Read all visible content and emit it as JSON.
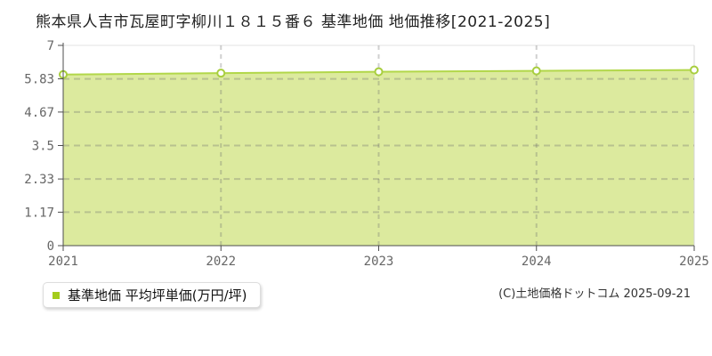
{
  "title": "熊本県人吉市瓦屋町字柳川１８１５番６ 基準地価 地価推移[2021-2025]",
  "legend": {
    "label": "基準地価 平均坪単価(万円/坪)"
  },
  "footer": {
    "copyright": "(C)土地価格ドットコム 2025-09-21"
  },
  "chart_data": {
    "type": "area",
    "categories": [
      "2021",
      "2022",
      "2023",
      "2024",
      "2025"
    ],
    "series": [
      {
        "name": "基準地価 平均坪単価(万円/坪)",
        "values": [
          5.98,
          6.03,
          6.08,
          6.11,
          6.14
        ]
      }
    ],
    "title": "熊本県人吉市瓦屋町字柳川１８１５番６ 基準地価 地価推移[2021-2025]",
    "xlabel": "",
    "ylabel": "",
    "ylim": [
      0,
      7
    ],
    "yticks": [
      0,
      1.17,
      2.33,
      3.5,
      4.67,
      5.83,
      7
    ],
    "ytick_labels": [
      "0",
      "1.17",
      "2.33",
      "3.5",
      "4.67",
      "5.83",
      "7"
    ],
    "grid": true,
    "legend_position": "bottom-left",
    "marker": "circle",
    "colors": {
      "area_fill": "#dcea9e",
      "line": "#b2d74a",
      "marker_fill": "#ffffff",
      "marker_stroke": "#a8ce3f",
      "legend_marker": "#a4cc1c",
      "axis": "#4d4d4d",
      "tick_label": "#666666",
      "grid_dash": "rgba(110,110,110,0.32)",
      "top_border": "#e3e3e3",
      "right_border": "#d5d5d5"
    }
  }
}
